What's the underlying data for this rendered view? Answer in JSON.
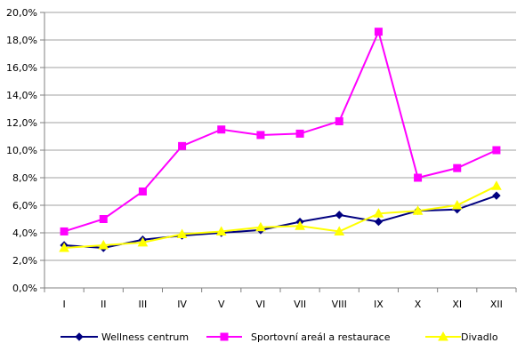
{
  "chart_data": {
    "type": "line",
    "categories": [
      "I",
      "II",
      "III",
      "IV",
      "V",
      "VI",
      "VII",
      "VIII",
      "IX",
      "X",
      "XI",
      "XII"
    ],
    "y_ticks": [
      "0,0%",
      "2,0%",
      "4,0%",
      "6,0%",
      "8,0%",
      "10,0%",
      "12,0%",
      "14,0%",
      "16,0%",
      "18,0%",
      "20,0%"
    ],
    "ylim": [
      0,
      20
    ],
    "grid": true,
    "legend_position": "bottom",
    "series": [
      {
        "name": "Wellness centrum",
        "color": "#000080",
        "marker": "diamond",
        "values": [
          3.1,
          2.9,
          3.5,
          3.8,
          4.0,
          4.2,
          4.8,
          5.3,
          4.8,
          5.6,
          5.7,
          6.7
        ]
      },
      {
        "name": "Sportovní areál a restaurace",
        "color": "#ff00ff",
        "marker": "square",
        "values": [
          4.1,
          5.0,
          7.0,
          10.3,
          11.5,
          11.1,
          11.2,
          12.1,
          18.6,
          8.0,
          8.7,
          10.0
        ]
      },
      {
        "name": "Divadlo",
        "color": "#ffff00",
        "marker": "triangle",
        "values": [
          2.9,
          3.1,
          3.3,
          3.9,
          4.1,
          4.4,
          4.5,
          4.1,
          5.4,
          5.6,
          6.0,
          7.4
        ]
      }
    ]
  }
}
